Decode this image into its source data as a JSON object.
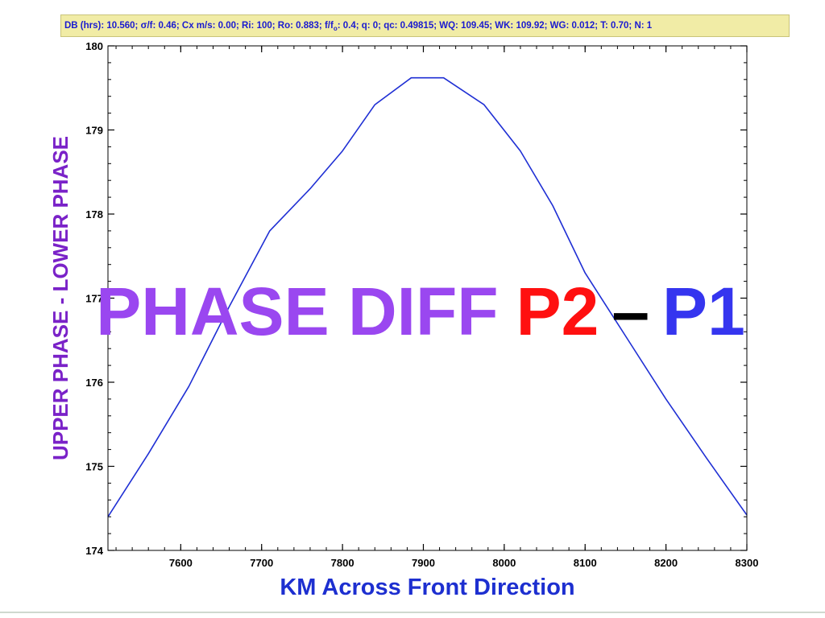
{
  "banner": {
    "text_part1": "DB (hrs): 10.560; σ/f: 0.46; Cx m/s: 0.00; Ri: 100; Ro: 0.883; f/f",
    "text_sub": "o",
    "text_part2": ": 0.4; q: 0; qc: 0.49815; WQ: 109.45; WK: 109.92; WG: 0.012; T: 0.70; N: 1"
  },
  "colors": {
    "line": "#1f2fd4",
    "y_title": "#7a22c8",
    "x_title": "#1d2fd0",
    "overlay_phase": "#9a47f0",
    "overlay_p2": "#ff1010",
    "overlay_dash": "#000000",
    "overlay_p1": "#3535ef"
  },
  "chart_data": {
    "type": "line",
    "xlabel": "KM Across Front Direction",
    "ylabel": "UPPER PHASE - LOWER PHASE",
    "xlim": [
      7510,
      8300
    ],
    "ylim": [
      174,
      180
    ],
    "xticks": [
      7600,
      7700,
      7800,
      7900,
      8000,
      8100,
      8200,
      8300
    ],
    "yticks": [
      174,
      175,
      176,
      177,
      178,
      179,
      180
    ],
    "xtick_labels": [
      "7600",
      "7700",
      "7800",
      "7900",
      "8000",
      "8100",
      "8200",
      "8300"
    ],
    "ytick_labels": [
      "174",
      "175",
      "176",
      "177",
      "178",
      "179",
      "180"
    ],
    "x_minor_step": 20,
    "y_minor_step": 0.2,
    "grid": false,
    "overlay_title": {
      "part1": "PHASE DIFF",
      "part2": "P2",
      "part3": "–",
      "part4": "P1"
    },
    "series": [
      {
        "x": [
          7510,
          7560,
          7610,
          7660,
          7710,
          7760,
          7800,
          7840,
          7885,
          7925,
          7975,
          8020,
          8060,
          8100,
          8150,
          8200,
          8250,
          8300
        ],
        "y": [
          174.4,
          175.15,
          175.95,
          176.9,
          177.8,
          178.3,
          178.75,
          179.3,
          179.62,
          179.62,
          179.3,
          178.75,
          178.1,
          177.3,
          176.55,
          175.8,
          175.1,
          174.42
        ]
      }
    ]
  }
}
